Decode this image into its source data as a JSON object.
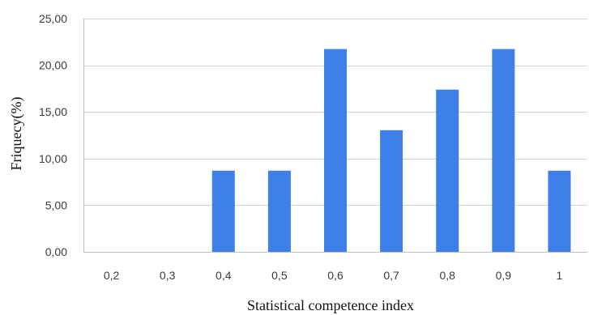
{
  "chart_data": {
    "type": "bar",
    "xlabel": "Statistical competence index",
    "ylabel": "Friquecy(%)",
    "categories": [
      "0,2",
      "0,3",
      "0,4",
      "0,5",
      "0,6",
      "0,7",
      "0,8",
      "0,9",
      "1"
    ],
    "values": [
      0,
      0,
      8.7,
      8.7,
      21.74,
      13.04,
      17.39,
      21.74,
      8.7
    ],
    "ylim": [
      0,
      25
    ],
    "yticks": [
      0,
      5,
      10,
      15,
      20,
      25
    ],
    "ytick_labels": [
      "0,00",
      "5,00",
      "10,00",
      "15,00",
      "20,00",
      "25,00"
    ],
    "grid": true,
    "legend": "none",
    "colors": {
      "bar": "#3f7fe9",
      "grid": "#d4d4d4",
      "frame": "#bfbfbf"
    }
  }
}
